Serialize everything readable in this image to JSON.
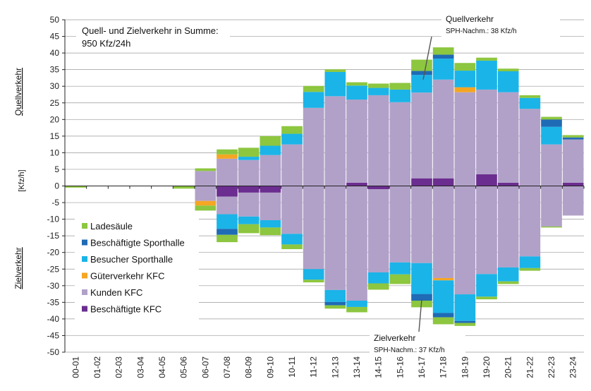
{
  "chart_data": {
    "type": "bar",
    "stacked": true,
    "categories": [
      "00-01",
      "01-02",
      "02-03",
      "03-04",
      "04-05",
      "05-06",
      "06-07",
      "07-08",
      "08-09",
      "09-10",
      "10-11",
      "11-12",
      "12-13",
      "13-14",
      "14-15",
      "15-16",
      "16-17",
      "17-18",
      "18-19",
      "19-20",
      "20-21",
      "21-22",
      "22-23",
      "23-24"
    ],
    "ylim": [
      -50,
      50
    ],
    "ytick_step": 5,
    "unit_label": "[Kfz/h]",
    "upper_axis_label": "Quellverkehr",
    "lower_axis_label": "Zielverkehr",
    "grid": "horizontal",
    "legend_position": "left",
    "summary_text": [
      "Quell- und Zielverkehr in Summe:",
      "950 Kfz/24h"
    ],
    "annotations": [
      {
        "title": "Quellverkehr",
        "subtitle": "SPH-Nachm.: 38 Kfz/h",
        "category": "16-17",
        "value": 32
      },
      {
        "title": "Zielverkehr",
        "subtitle": "SPH-Nachm.: 37 Kfz/h",
        "category": "16-17",
        "value": -34
      }
    ],
    "quell_series": [
      {
        "name": "Beschäftigte KFC",
        "color": "#6b2d8f",
        "values": [
          0,
          0,
          0,
          0,
          0,
          0,
          0,
          0,
          0,
          0,
          0,
          0,
          0,
          1,
          0,
          0,
          2.3,
          2.3,
          0,
          3.5,
          1,
          0,
          0,
          1
        ]
      },
      {
        "name": "Kunden KFC",
        "color": "#b1a1c8",
        "values": [
          0,
          0,
          0,
          0,
          0,
          0,
          4.5,
          8.2,
          7.8,
          9.3,
          12.5,
          23.5,
          27,
          25,
          27.3,
          25.2,
          25.8,
          29.7,
          28.2,
          25.5,
          27.2,
          23.2,
          12.5,
          13
        ]
      },
      {
        "name": "Güterverkehr KFC",
        "color": "#f5a623",
        "values": [
          0,
          0,
          0,
          0,
          0,
          0,
          0,
          1.3,
          0,
          0,
          0,
          0,
          0,
          0,
          0,
          0,
          0,
          0,
          1.5,
          0,
          0,
          0,
          0,
          0
        ]
      },
      {
        "name": "Besucher Sporthalle",
        "color": "#1ab4e8",
        "values": [
          0,
          0,
          0,
          0,
          0,
          0,
          0,
          0,
          1,
          2.8,
          3.2,
          4.8,
          7.3,
          4.2,
          2.2,
          3.8,
          5.3,
          6.3,
          5,
          8.7,
          6.3,
          3.3,
          5.3,
          0
        ]
      },
      {
        "name": "Beschäftigte Sporthalle",
        "color": "#1f6bb5",
        "values": [
          0,
          0,
          0,
          0,
          0,
          0,
          0,
          0,
          0,
          0,
          0,
          0,
          0,
          0,
          0,
          0,
          1.2,
          1.2,
          0,
          0,
          0,
          0,
          2.2,
          0.6
        ]
      },
      {
        "name": "Ladesäule",
        "color": "#8dc63f",
        "values": [
          0,
          0,
          0,
          0,
          0,
          0,
          0.8,
          1.5,
          2.7,
          2.9,
          2.3,
          1.8,
          0.8,
          1,
          1.3,
          2,
          3.4,
          2.2,
          2.3,
          0.9,
          0.8,
          0.8,
          0.8,
          0.7
        ]
      }
    ],
    "ziel_series": [
      {
        "name": "Beschäftigte KFC",
        "color": "#6b2d8f",
        "values": [
          0,
          0,
          0,
          0,
          0,
          0,
          0,
          -3.2,
          -2,
          -2,
          0,
          0,
          0,
          0,
          -1,
          0,
          0,
          0,
          0,
          0,
          0,
          0,
          0,
          0
        ]
      },
      {
        "name": "Kunden KFC",
        "color": "#b1a1c8",
        "values": [
          0,
          0,
          0,
          0,
          0,
          0,
          -4.5,
          -5.3,
          -7.2,
          -8.3,
          -14.4,
          -25,
          -31.3,
          -34.5,
          -25,
          -23,
          -23.2,
          -27.7,
          -32.6,
          -26.5,
          -24.5,
          -21.2,
          -12.2,
          -8.9
        ]
      },
      {
        "name": "Güterverkehr KFC",
        "color": "#f5a623",
        "values": [
          0,
          0,
          0,
          0,
          0,
          0,
          -1.4,
          0,
          0,
          0,
          0,
          0,
          0,
          0,
          0,
          0,
          0,
          -0.7,
          0,
          0,
          0,
          0,
          0,
          0
        ]
      },
      {
        "name": "Besucher Sporthalle",
        "color": "#1ab4e8",
        "values": [
          0,
          0,
          0,
          0,
          0,
          0,
          0,
          -4.4,
          -2.3,
          -2.2,
          -3.2,
          -3.2,
          -3.6,
          -1.9,
          -3.3,
          -3.6,
          -9.3,
          -9.8,
          -8,
          -6.8,
          -4.2,
          -3.5,
          0,
          0
        ]
      },
      {
        "name": "Beschäftigte Sporthalle",
        "color": "#1f6bb5",
        "values": [
          0,
          0,
          0,
          0,
          0,
          0,
          0,
          -1.8,
          0,
          0,
          0,
          0,
          -1,
          0,
          0,
          0,
          -2,
          -1.3,
          -0.6,
          0,
          0,
          0,
          0,
          0
        ]
      },
      {
        "name": "Ladesäule",
        "color": "#8dc63f",
        "values": [
          -0.5,
          0,
          0,
          0,
          0,
          -0.8,
          -1.5,
          -2.2,
          -2.7,
          -2.3,
          -1.4,
          -0.8,
          -1,
          -1.6,
          -1.9,
          -2.9,
          -2,
          -2.1,
          -0.9,
          -0.8,
          -0.8,
          -0.8,
          -0.3,
          0
        ]
      }
    ],
    "legend": [
      {
        "name": "Ladesäule",
        "color": "#8dc63f"
      },
      {
        "name": "Beschäftigte Sporthalle",
        "color": "#1f6bb5"
      },
      {
        "name": "Besucher Sporthalle",
        "color": "#1ab4e8"
      },
      {
        "name": "Güterverkehr KFC",
        "color": "#f5a623"
      },
      {
        "name": "Kunden KFC",
        "color": "#b1a1c8"
      },
      {
        "name": "Beschäftigte KFC",
        "color": "#6b2d8f"
      }
    ]
  }
}
